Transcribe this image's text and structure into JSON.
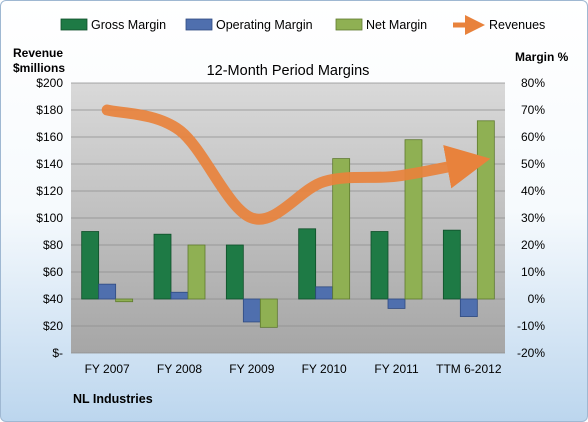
{
  "company": "NL Industries",
  "chart_data": {
    "type": "bar",
    "title": "12-Month Period Margins",
    "categories": [
      "FY 2007",
      "FY 2008",
      "FY 2009",
      "FY 2010",
      "FY 2011",
      "TTM 6-2012"
    ],
    "left_axis": {
      "label_line1": "Revenue",
      "label_line2": "$millions",
      "ticks": [
        "$-",
        "$20",
        "$40",
        "$60",
        "$80",
        "$100",
        "$120",
        "$140",
        "$160",
        "$180",
        "$200"
      ],
      "range": [
        0,
        200
      ]
    },
    "right_axis": {
      "label": "Margin %",
      "ticks": [
        "-20%",
        "-10%",
        "0%",
        "10%",
        "20%",
        "30%",
        "40%",
        "50%",
        "60%",
        "70%",
        "80%"
      ],
      "range": [
        -20,
        80
      ]
    },
    "legend": [
      "Gross Margin",
      "Operating Margin",
      "Net Margin",
      "Revenues"
    ],
    "series": [
      {
        "name": "Gross Margin",
        "axis": "right",
        "color": "#1e7a45",
        "values": [
          25,
          24,
          20,
          26,
          25,
          25.5
        ]
      },
      {
        "name": "Operating Margin",
        "axis": "right",
        "color": "#4f6fae",
        "values": [
          5.5,
          2.5,
          -8.5,
          4.5,
          -3.5,
          -6.5
        ]
      },
      {
        "name": "Net Margin",
        "axis": "right",
        "color": "#8fb053",
        "values": [
          -1,
          20,
          -10.5,
          52,
          59,
          66
        ]
      },
      {
        "name": "Revenues",
        "axis": "left",
        "color": "#e8823c",
        "type": "line",
        "values": [
          180,
          165,
          100,
          127,
          131,
          141
        ]
      }
    ],
    "grid": true,
    "legend_position": "top"
  }
}
